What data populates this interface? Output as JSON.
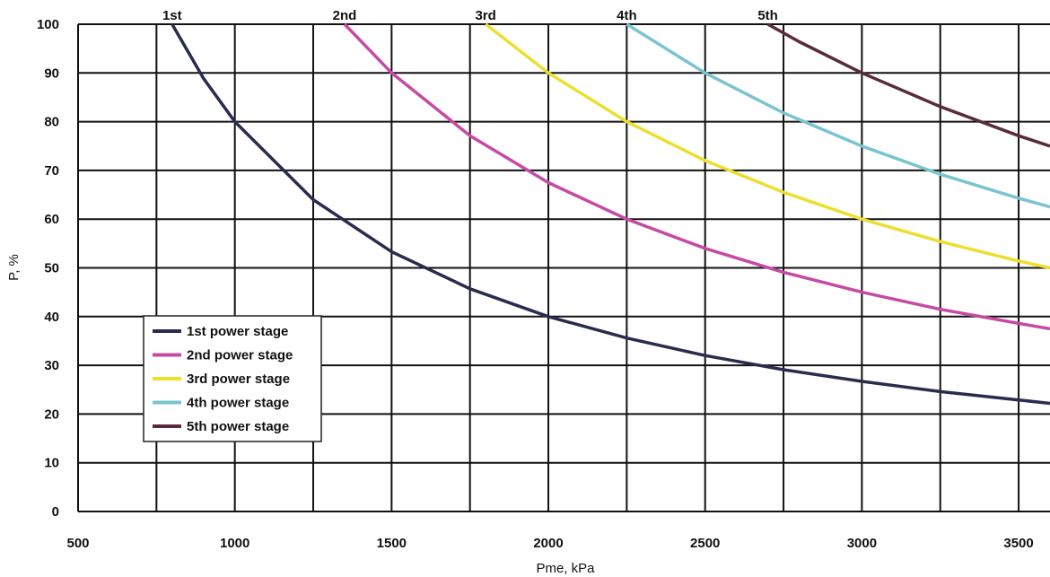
{
  "chart_data": {
    "type": "line",
    "title": "",
    "xlabel": "Pme, kPa",
    "ylabel": "P, %",
    "xlim": [
      500,
      3600
    ],
    "ylim": [
      0,
      100
    ],
    "x_ticks": [
      500,
      1000,
      1500,
      2000,
      2500,
      3000,
      3500
    ],
    "y_ticks": [
      0,
      10,
      20,
      30,
      40,
      50,
      60,
      70,
      80,
      90,
      100
    ],
    "x_tick_labels": [
      "500",
      "1000",
      "1500",
      "2000",
      "2500",
      "3000",
      "3500"
    ],
    "y_tick_labels": [
      "0",
      "10",
      "20",
      "30",
      "40",
      "50",
      "60",
      "70",
      "80",
      "90",
      "100"
    ],
    "grid": true,
    "legend_position": "lower-left",
    "stage_labels": [
      "1st",
      "2nd",
      "3rd",
      "4th",
      "5th"
    ],
    "series": [
      {
        "name": "1st power stage",
        "color": "#2a2c4e",
        "x": [
          800,
          900,
          1000,
          1250,
          1500,
          1750,
          2000,
          2250,
          2500,
          2750,
          3000,
          3250,
          3500,
          3600
        ],
        "y": [
          100,
          88.9,
          80,
          64,
          53.3,
          45.7,
          40,
          35.6,
          32,
          29.1,
          26.7,
          24.6,
          22.9,
          22.2
        ]
      },
      {
        "name": "2nd power stage",
        "color": "#c64aa3",
        "x": [
          1350,
          1500,
          1750,
          2000,
          2250,
          2500,
          2750,
          3000,
          3250,
          3500,
          3600
        ],
        "y": [
          100,
          90,
          77.1,
          67.5,
          60,
          54,
          49.1,
          45,
          41.5,
          38.6,
          37.5
        ]
      },
      {
        "name": "3rd power stage",
        "color": "#ecdf2e",
        "x": [
          1800,
          2000,
          2250,
          2500,
          2750,
          3000,
          3250,
          3500,
          3600
        ],
        "y": [
          100,
          90,
          80,
          72,
          65.5,
          60,
          55.4,
          51.4,
          50
        ]
      },
      {
        "name": "4th power stage",
        "color": "#79c4d0",
        "x": [
          2250,
          2500,
          2750,
          3000,
          3250,
          3500,
          3600
        ],
        "y": [
          100,
          90,
          81.8,
          75,
          69.2,
          64.3,
          62.5
        ]
      },
      {
        "name": "5th power stage",
        "color": "#5a2b3e",
        "x": [
          2700,
          2800,
          3000,
          3250,
          3500,
          3600
        ],
        "y": [
          100,
          96.4,
          90,
          83.1,
          77.1,
          75
        ]
      }
    ]
  }
}
